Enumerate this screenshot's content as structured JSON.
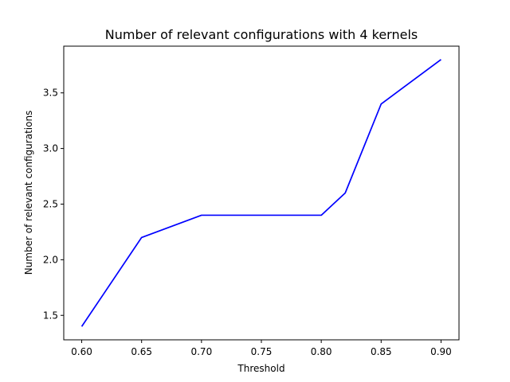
{
  "chart_data": {
    "type": "line",
    "title": "Number of relevant configurations with 4 kernels",
    "xlabel": "Threshold",
    "ylabel": "Number of relevant configurations",
    "xlim": [
      0.585,
      0.915
    ],
    "ylim": [
      1.28,
      3.92
    ],
    "xticks": [
      0.6,
      0.65,
      0.7,
      0.75,
      0.8,
      0.85,
      0.9
    ],
    "xtick_labels": [
      "0.60",
      "0.65",
      "0.70",
      "0.75",
      "0.80",
      "0.85",
      "0.90"
    ],
    "yticks": [
      1.5,
      2.0,
      2.5,
      3.0,
      3.5
    ],
    "ytick_labels": [
      "1.5",
      "2.0",
      "2.5",
      "3.0",
      "3.5"
    ],
    "grid": false,
    "series": [
      {
        "color": "#0000ff",
        "x": [
          0.6,
          0.65,
          0.7,
          0.8,
          0.82,
          0.85,
          0.9
        ],
        "y": [
          1.4,
          2.2,
          2.4,
          2.4,
          2.6,
          3.4,
          3.8
        ]
      }
    ]
  }
}
